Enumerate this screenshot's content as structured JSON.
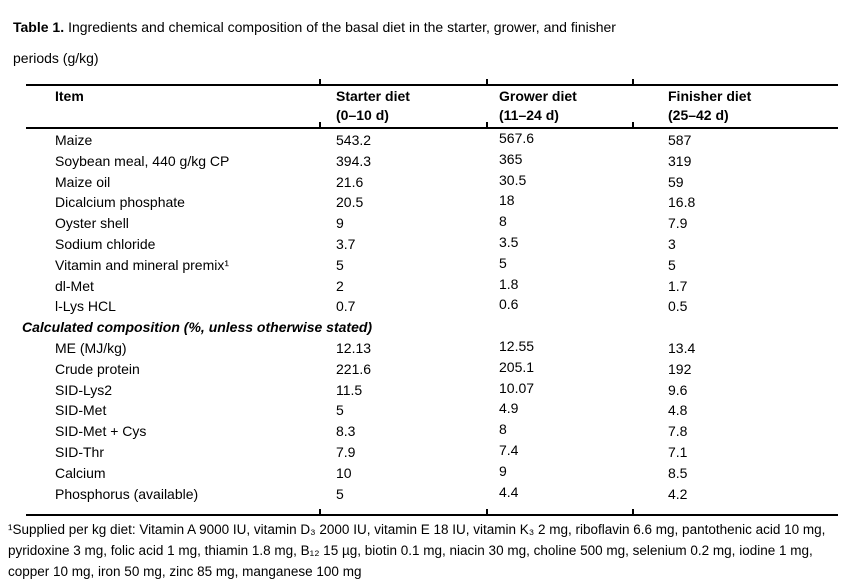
{
  "caption": {
    "label": "Table 1.",
    "line1": "Ingredients and chemical composition of the basal diet in the starter, grower, and finisher",
    "line2": "periods (g/kg)"
  },
  "table": {
    "columns": [
      {
        "label": "Item",
        "range": ""
      },
      {
        "label": "Starter diet",
        "range": "(0–10 d)"
      },
      {
        "label": "Grower diet",
        "range": "(11–24 d)"
      },
      {
        "label": "Finisher diet",
        "range": "(25–42 d)"
      }
    ],
    "ingredients": [
      {
        "item": "Maize",
        "starter": "543.2",
        "grower": "567.6",
        "finisher": "587"
      },
      {
        "item": "Soybean meal, 440 g/kg CP",
        "starter": "394.3",
        "grower": "365",
        "finisher": "319"
      },
      {
        "item": "Maize oil",
        "starter": "21.6",
        "grower": "30.5",
        "finisher": "59"
      },
      {
        "item": "Dicalcium phosphate",
        "starter": "20.5",
        "grower": "18",
        "finisher": "16.8"
      },
      {
        "item": "Oyster shell",
        "starter": "9",
        "grower": "8",
        "finisher": "7.9"
      },
      {
        "item": "Sodium chloride",
        "starter": "3.7",
        "grower": "3.5",
        "finisher": "3"
      },
      {
        "item": "Vitamin and mineral premix¹",
        "starter": "5",
        "grower": "5",
        "finisher": "5"
      },
      {
        "item": "dl-Met",
        "starter": "2",
        "grower": "1.8",
        "finisher": "1.7"
      },
      {
        "item": "l-Lys HCL",
        "starter": "0.7",
        "grower": "0.6",
        "finisher": "0.5"
      }
    ],
    "section_header": "Calculated composition (%, unless otherwise stated)",
    "composition": [
      {
        "item": "ME (MJ/kg)",
        "starter": "12.13",
        "grower": "12.55",
        "finisher": "13.4"
      },
      {
        "item": "Crude protein",
        "starter": "221.6",
        "grower": "205.1",
        "finisher": "192"
      },
      {
        "item": "SID-Lys2",
        "starter": "11.5",
        "grower": "10.07",
        "finisher": "9.6"
      },
      {
        "item": "SID-Met",
        "starter": "5",
        "grower": "4.9",
        "finisher": "4.8"
      },
      {
        "item": "SID-Met + Cys",
        "starter": "8.3",
        "grower": "8",
        "finisher": "7.8"
      },
      {
        "item": "SID-Thr",
        "starter": "7.9",
        "grower": "7.4",
        "finisher": "7.1"
      },
      {
        "item": "Calcium",
        "starter": "10",
        "grower": "9",
        "finisher": "8.5"
      },
      {
        "item": "Phosphorus (available)",
        "starter": "5",
        "grower": "4.4",
        "finisher": "4.2"
      }
    ]
  },
  "footnote": "¹Supplied per kg diet: Vitamin A 9000 IU, vitamin D₃ 2000 IU, vitamin E 18 IU, vitamin K₃ 2 mg, riboflavin 6.6 mg, pantothenic acid 10 mg, pyridoxine 3 mg, folic acid 1 mg, thiamin 1.8 mg, B₁₂ 15 µg, biotin 0.1 mg, niacin 30 mg, choline 500 mg, selenium 0.2 mg, iodine 1 mg, copper 10 mg, iron 50 mg, zinc 85 mg, manganese 100 mg",
  "colors": {
    "text": "#000000",
    "background": "#ffffff",
    "rule": "#000000"
  }
}
